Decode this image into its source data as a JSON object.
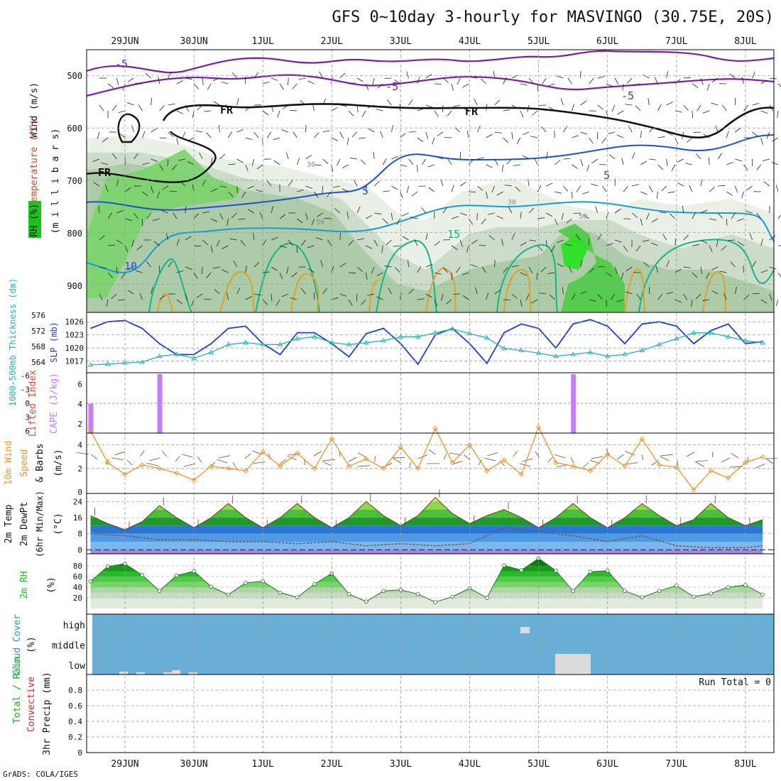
{
  "title": "GFS 0~10day 3-hourly for MASVINGO (30.75E, 20S)",
  "credit": "GrADS: COLA/IGES",
  "dates": [
    "29JUN",
    "30JUN",
    "1JUL",
    "2JUL",
    "3JUL",
    "4JUL",
    "5JUL",
    "6JUL",
    "7JUL",
    "8JUL"
  ],
  "colors": {
    "grid": "#999999",
    "slp": "#1f3fc4",
    "thickness": "#29b0b4",
    "cape": "#c77dff",
    "lifted_index": "#e0483c",
    "wind_speed": "#e8962e",
    "barbs": "#6b4b2f",
    "temp_bands": [
      "#a782ef",
      "#78b8ee",
      "#4f9ae6",
      "#2a76d6",
      "#1f9a2a",
      "#49c038",
      "#8fd84a",
      "#dbe86a",
      "#f0a040"
    ],
    "rh_bands": [
      "#e0eadd",
      "#c9d9c5",
      "#a9d9a0",
      "#7ad46c",
      "#4dcc45",
      "#2cb82c",
      "#169a1a",
      "#0b7a10"
    ],
    "cloud_bg": "#6aaed6",
    "cloud_patch": "#dcdcdc",
    "temp_contour_5": "#2050d0",
    "temp_contour_15": "#1a9ad8",
    "temp_contour_warm": "#14b58a",
    "temp_contour_hot": "#e2a028",
    "neg_temp": "#7b1fa2"
  },
  "panels": {
    "upper_air": {
      "ylabel_wind": "Wind (m/s)",
      "ylabel_temp": "Temperature (°C)",
      "ylabel_rh": "RH (%)",
      "ylabel_p": "(m i l l i b a r s)",
      "pressure_ticks": [
        "500",
        "600",
        "700",
        "800",
        "900"
      ],
      "contour_labels": [
        "-5",
        "-5",
        "-5",
        "FR",
        "FR",
        "FR",
        "5",
        "5",
        "10",
        "15",
        "30",
        "30",
        "50",
        "50"
      ]
    },
    "slp_thickness": {
      "ylabel_thick": "1000-500mb Thickness (dm)",
      "ylabel_slp": "SLP (mb)",
      "slp_ticks": [
        "1026",
        "1023",
        "1020",
        "1017"
      ],
      "thick_ticks": [
        "576",
        "572",
        "568",
        "564"
      ]
    },
    "cape": {
      "ylabel_li": "Lifted Index",
      "ylabel_cape": "CAPE (J/kg)",
      "li_ticks": [
        "-6",
        "-3",
        "0",
        "3",
        "6"
      ],
      "cape_ticks": [
        "6",
        "4",
        "2"
      ]
    },
    "wind10": {
      "ylabel1": "10m Wind",
      "ylabel2": "Speed",
      "ylabel3": "& Barbs",
      "ylabel_units": "(m/s)",
      "ticks": [
        "4",
        "2",
        "0"
      ]
    },
    "temp2m": {
      "ylabel1": "2m Temp",
      "ylabel2": "2m DewPt",
      "ylabel3": "(6hr Min/Max)",
      "ylabel_units": "(°C)",
      "ticks": [
        "24",
        "16",
        "8",
        "0"
      ]
    },
    "rh2m": {
      "ylabel": "2m RH",
      "ylabel_units": "(%)",
      "ticks": [
        "80",
        "60",
        "40",
        "20"
      ]
    },
    "cloud": {
      "ylabel": "Cloud Cover",
      "ylabel_units": "(%)",
      "levels": [
        "high",
        "middle",
        "low"
      ]
    },
    "precip": {
      "ylabel_total": "Total / Rain",
      "ylabel_conv": "Convective",
      "ylabel_units": "3hr Precip (mm)",
      "ticks": [
        "0.8",
        "0.6",
        "0.4",
        "0.2",
        "0"
      ],
      "run_total": "Run Total = 0"
    }
  },
  "chart_data": [
    {
      "type": "line",
      "title": "SLP (mb)",
      "x_unit": "days since 29JUN 00Z",
      "ylim": [
        1015,
        1027.5
      ],
      "x": [
        -0.5,
        -0.25,
        0,
        0.25,
        0.5,
        0.75,
        1,
        1.25,
        1.5,
        1.75,
        2,
        2.25,
        2.5,
        2.75,
        3,
        3.25,
        3.5,
        3.75,
        4,
        4.25,
        4.5,
        4.75,
        5,
        5.25,
        5.5,
        5.75,
        6,
        6.25,
        6.5,
        6.75,
        7,
        7.25,
        7.5,
        7.75,
        8,
        8.25,
        8.5,
        8.75,
        9,
        9.25
      ],
      "values": [
        1024.5,
        1026,
        1026.3,
        1024.5,
        1021,
        1018.5,
        1018.5,
        1021,
        1024.5,
        1025,
        1021,
        1018.5,
        1023.5,
        1023.5,
        1021,
        1018,
        1023.3,
        1024.5,
        1021,
        1016.3,
        1023,
        1024.5,
        1021,
        1016.5,
        1023.5,
        1025.5,
        1024.5,
        1020,
        1025.5,
        1026.5,
        1025,
        1021,
        1025.5,
        1026,
        1025,
        1021,
        1024,
        1025.5,
        1021,
        1021.5
      ]
    },
    {
      "type": "line",
      "title": "1000-500mb Thickness (dm)",
      "x_unit": "days since 29JUN 00Z",
      "ylim": [
        562,
        576
      ],
      "x": [
        -0.5,
        -0.25,
        0,
        0.25,
        0.5,
        0.75,
        1,
        1.25,
        1.5,
        1.75,
        2,
        2.25,
        2.5,
        2.75,
        3,
        3.25,
        3.5,
        3.75,
        4,
        4.25,
        4.5,
        4.75,
        5,
        5.25,
        5.5,
        5.75,
        6,
        6.25,
        6.5,
        6.75,
        7,
        7.25,
        7.5,
        7.75,
        8,
        8.25,
        8.5,
        8.75,
        9,
        9.25
      ],
      "values": [
        563.3,
        563.5,
        563.8,
        564,
        565.5,
        566,
        565,
        566.5,
        568.5,
        569,
        568.5,
        568.5,
        570,
        570.5,
        569,
        568.5,
        569,
        569.5,
        570.5,
        570.5,
        571.5,
        572.5,
        571.3,
        570.2,
        567.5,
        567,
        566.3,
        565.5,
        566,
        566.5,
        565.5,
        566,
        567,
        568.5,
        570,
        571.5,
        571.5,
        570.5,
        569.5,
        569
      ]
    },
    {
      "type": "bar",
      "title": "CAPE (J/kg)",
      "x_unit": "days since 29JUN 00Z",
      "ylim": [
        0,
        8
      ],
      "x": [
        -0.5,
        0.5,
        6.5
      ],
      "values": [
        4,
        8,
        8
      ]
    },
    {
      "type": "line",
      "title": "10m Wind Speed (m/s)",
      "x_unit": "days since 29JUN 00Z",
      "ylim": [
        0,
        5
      ],
      "x": [
        -0.5,
        -0.25,
        0,
        0.25,
        0.5,
        0.75,
        1,
        1.25,
        1.5,
        1.75,
        2,
        2.25,
        2.5,
        2.75,
        3,
        3.25,
        3.5,
        3.75,
        4,
        4.25,
        4.5,
        4.75,
        5,
        5.25,
        5.5,
        5.75,
        6,
        6.25,
        6.5,
        6.75,
        7,
        7.25,
        7.5,
        7.75,
        8,
        8.25,
        8.5,
        8.75,
        9,
        9.25
      ],
      "values": [
        5.2,
        2.5,
        1.5,
        2.3,
        2.0,
        1.6,
        1.0,
        2.2,
        2.0,
        1.8,
        3.4,
        2.2,
        3.3,
        2.0,
        4.5,
        2.2,
        2.8,
        2.0,
        3.8,
        2.0,
        5.4,
        2.5,
        4.0,
        1.8,
        2.7,
        1.5,
        5.5,
        2.5,
        2.2,
        1.8,
        3.2,
        2.2,
        4.5,
        2.3,
        2.1,
        0.2,
        1.8,
        1.2,
        2.5,
        3.0
      ]
    },
    {
      "type": "area",
      "title": "2m Temp (°C)",
      "x_unit": "days since 29JUN 00Z",
      "ylim": [
        -2,
        28
      ],
      "x": [
        -0.5,
        -0.25,
        0,
        0.25,
        0.5,
        0.75,
        1,
        1.25,
        1.5,
        1.75,
        2,
        2.25,
        2.5,
        2.75,
        3,
        3.25,
        3.5,
        3.75,
        4,
        4.25,
        4.5,
        4.75,
        5,
        5.25,
        5.5,
        5.75,
        6,
        6.25,
        6.5,
        6.75,
        7,
        7.25,
        7.5,
        7.75,
        8,
        8.25,
        8.5,
        8.75,
        9,
        9.25
      ],
      "values": [
        17,
        13,
        10,
        14,
        22,
        16,
        11,
        16,
        23,
        16,
        11,
        16,
        23,
        16,
        11,
        16,
        24,
        17,
        12,
        17,
        26,
        18,
        13,
        17,
        20,
        16,
        11,
        16,
        23,
        16,
        11,
        16,
        23,
        17,
        12,
        15,
        23,
        16,
        12,
        15
      ]
    },
    {
      "type": "line",
      "title": "2m DewPt (°C)",
      "x_unit": "days since 29JUN 00Z",
      "ylim": [
        -2,
        28
      ],
      "x": [
        -0.5,
        0,
        0.5,
        1,
        1.5,
        2,
        2.5,
        3,
        3.5,
        4,
        4.5,
        5,
        5.5,
        6,
        6.5,
        7,
        7.5,
        8,
        8.5,
        9,
        9.25
      ],
      "values": [
        8,
        7,
        5,
        5,
        4,
        4,
        3,
        4,
        2,
        3,
        2,
        3,
        11,
        9,
        7,
        4,
        7,
        2,
        1,
        1,
        2
      ]
    },
    {
      "type": "area",
      "title": "2m RH (%)",
      "x_unit": "days since 29JUN 00Z",
      "ylim": [
        0,
        100
      ],
      "x": [
        -0.5,
        -0.25,
        0,
        0.25,
        0.5,
        0.75,
        1,
        1.25,
        1.5,
        1.75,
        2,
        2.25,
        2.5,
        2.75,
        3,
        3.25,
        3.5,
        3.75,
        4,
        4.25,
        4.5,
        4.75,
        5,
        5.25,
        5.5,
        5.75,
        6,
        6.25,
        6.5,
        6.75,
        7,
        7.25,
        7.5,
        7.75,
        8,
        8.25,
        8.5,
        8.75,
        9,
        9.25
      ],
      "values": [
        51,
        79,
        84,
        63,
        33,
        62,
        70,
        41,
        26,
        48,
        51,
        30,
        21,
        46,
        66,
        27,
        13,
        33,
        35,
        27,
        12,
        22,
        38,
        20,
        81,
        72,
        94,
        71,
        33,
        69,
        71,
        33,
        21,
        33,
        43,
        22,
        28,
        40,
        44,
        26
      ]
    },
    {
      "type": "bar",
      "title": "3hr Precip (mm)",
      "ylim": [
        0,
        1
      ],
      "values": [
        0
      ]
    }
  ]
}
